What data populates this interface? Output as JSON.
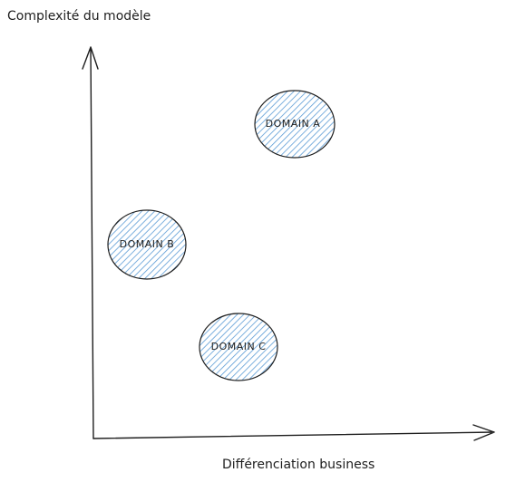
{
  "y_axis": {
    "label": "Complexité du modèle"
  },
  "x_axis": {
    "label": "Différenciation business"
  },
  "nodes": [
    {
      "label": "DOMAIN A"
    },
    {
      "label": "DOMAIN B"
    },
    {
      "label": "DOMAIN C"
    }
  ]
}
